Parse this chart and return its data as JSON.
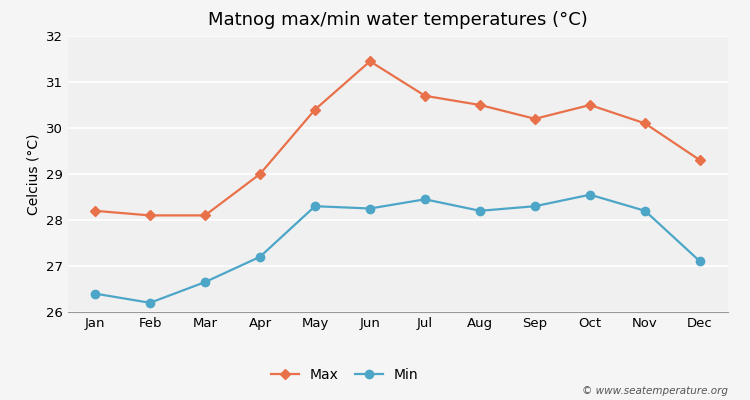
{
  "title": "Matnog max/min water temperatures (°C)",
  "ylabel": "Celcius (°C)",
  "months": [
    "Jan",
    "Feb",
    "Mar",
    "Apr",
    "May",
    "Jun",
    "Jul",
    "Aug",
    "Sep",
    "Oct",
    "Nov",
    "Dec"
  ],
  "max_temps": [
    28.2,
    28.1,
    28.1,
    29.0,
    30.4,
    31.45,
    30.7,
    30.5,
    30.2,
    30.5,
    30.1,
    29.3
  ],
  "min_temps": [
    26.4,
    26.2,
    26.65,
    27.2,
    28.3,
    28.25,
    28.45,
    28.2,
    28.3,
    28.55,
    28.2,
    27.1
  ],
  "max_color": "#e8714a",
  "min_color": "#4da6c8",
  "fig_bg_color": "#f5f5f5",
  "plot_bg_color": "#f0f0f0",
  "grid_color": "#ffffff",
  "ylim_min": 26.0,
  "ylim_max": 32.0,
  "yticks": [
    26,
    27,
    28,
    29,
    30,
    31,
    32
  ],
  "watermark": "© www.seatemperature.org",
  "title_fontsize": 13,
  "axis_label_fontsize": 10,
  "tick_fontsize": 9.5,
  "legend_labels": [
    "Max",
    "Min"
  ]
}
